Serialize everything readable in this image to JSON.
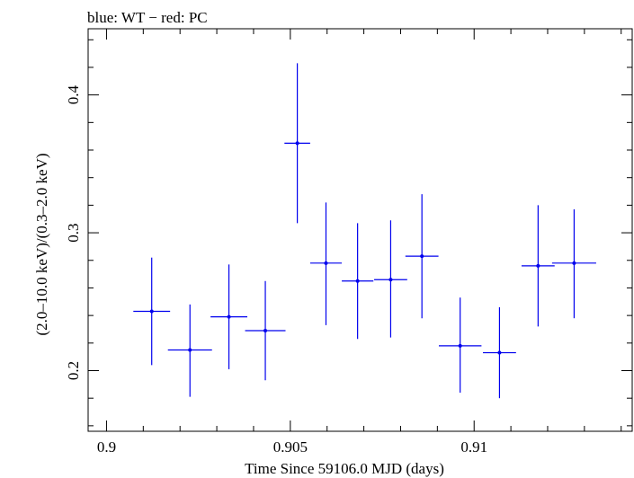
{
  "chart_data": {
    "type": "scatter",
    "title": "blue: WT − red: PC",
    "xlabel": "Time Since 59106.0 MJD (days)",
    "ylabel": "(2.0–10.0 keV)/(0.3–2.0 keV)",
    "xlim": [
      0.8995,
      0.9143
    ],
    "ylim": [
      0.156,
      0.448
    ],
    "x_ticks": [
      0.9,
      0.905,
      0.91
    ],
    "x_tick_labels": [
      "0.9",
      "0.905",
      "0.91"
    ],
    "y_ticks": [
      0.2,
      0.3,
      0.4
    ],
    "y_tick_labels": [
      "0.2",
      "0.3",
      "0.4"
    ],
    "grid": false,
    "series": [
      {
        "color": "#0000ee",
        "points": [
          {
            "x": 0.90123,
            "xerr": 0.0005,
            "y": 0.243,
            "ylo": 0.204,
            "yhi": 0.282
          },
          {
            "x": 0.90227,
            "xerr": 0.0006,
            "y": 0.215,
            "ylo": 0.181,
            "yhi": 0.248
          },
          {
            "x": 0.90333,
            "xerr": 0.0005,
            "y": 0.239,
            "ylo": 0.201,
            "yhi": 0.277
          },
          {
            "x": 0.90432,
            "xerr": 0.00055,
            "y": 0.229,
            "ylo": 0.193,
            "yhi": 0.265
          },
          {
            "x": 0.90519,
            "xerr": 0.00035,
            "y": 0.365,
            "ylo": 0.307,
            "yhi": 0.423
          },
          {
            "x": 0.90597,
            "xerr": 0.00043,
            "y": 0.278,
            "ylo": 0.233,
            "yhi": 0.322
          },
          {
            "x": 0.90683,
            "xerr": 0.00043,
            "y": 0.265,
            "ylo": 0.223,
            "yhi": 0.307
          },
          {
            "x": 0.90773,
            "xerr": 0.00045,
            "y": 0.266,
            "ylo": 0.224,
            "yhi": 0.309
          },
          {
            "x": 0.90858,
            "xerr": 0.00045,
            "y": 0.283,
            "ylo": 0.238,
            "yhi": 0.328
          },
          {
            "x": 0.90962,
            "xerr": 0.00058,
            "y": 0.218,
            "ylo": 0.184,
            "yhi": 0.253
          },
          {
            "x": 0.91069,
            "xerr": 0.00045,
            "y": 0.213,
            "ylo": 0.18,
            "yhi": 0.246
          },
          {
            "x": 0.91174,
            "xerr": 0.00045,
            "y": 0.276,
            "ylo": 0.232,
            "yhi": 0.32
          },
          {
            "x": 0.91272,
            "xerr": 0.0006,
            "y": 0.278,
            "ylo": 0.238,
            "yhi": 0.317
          }
        ]
      }
    ]
  }
}
